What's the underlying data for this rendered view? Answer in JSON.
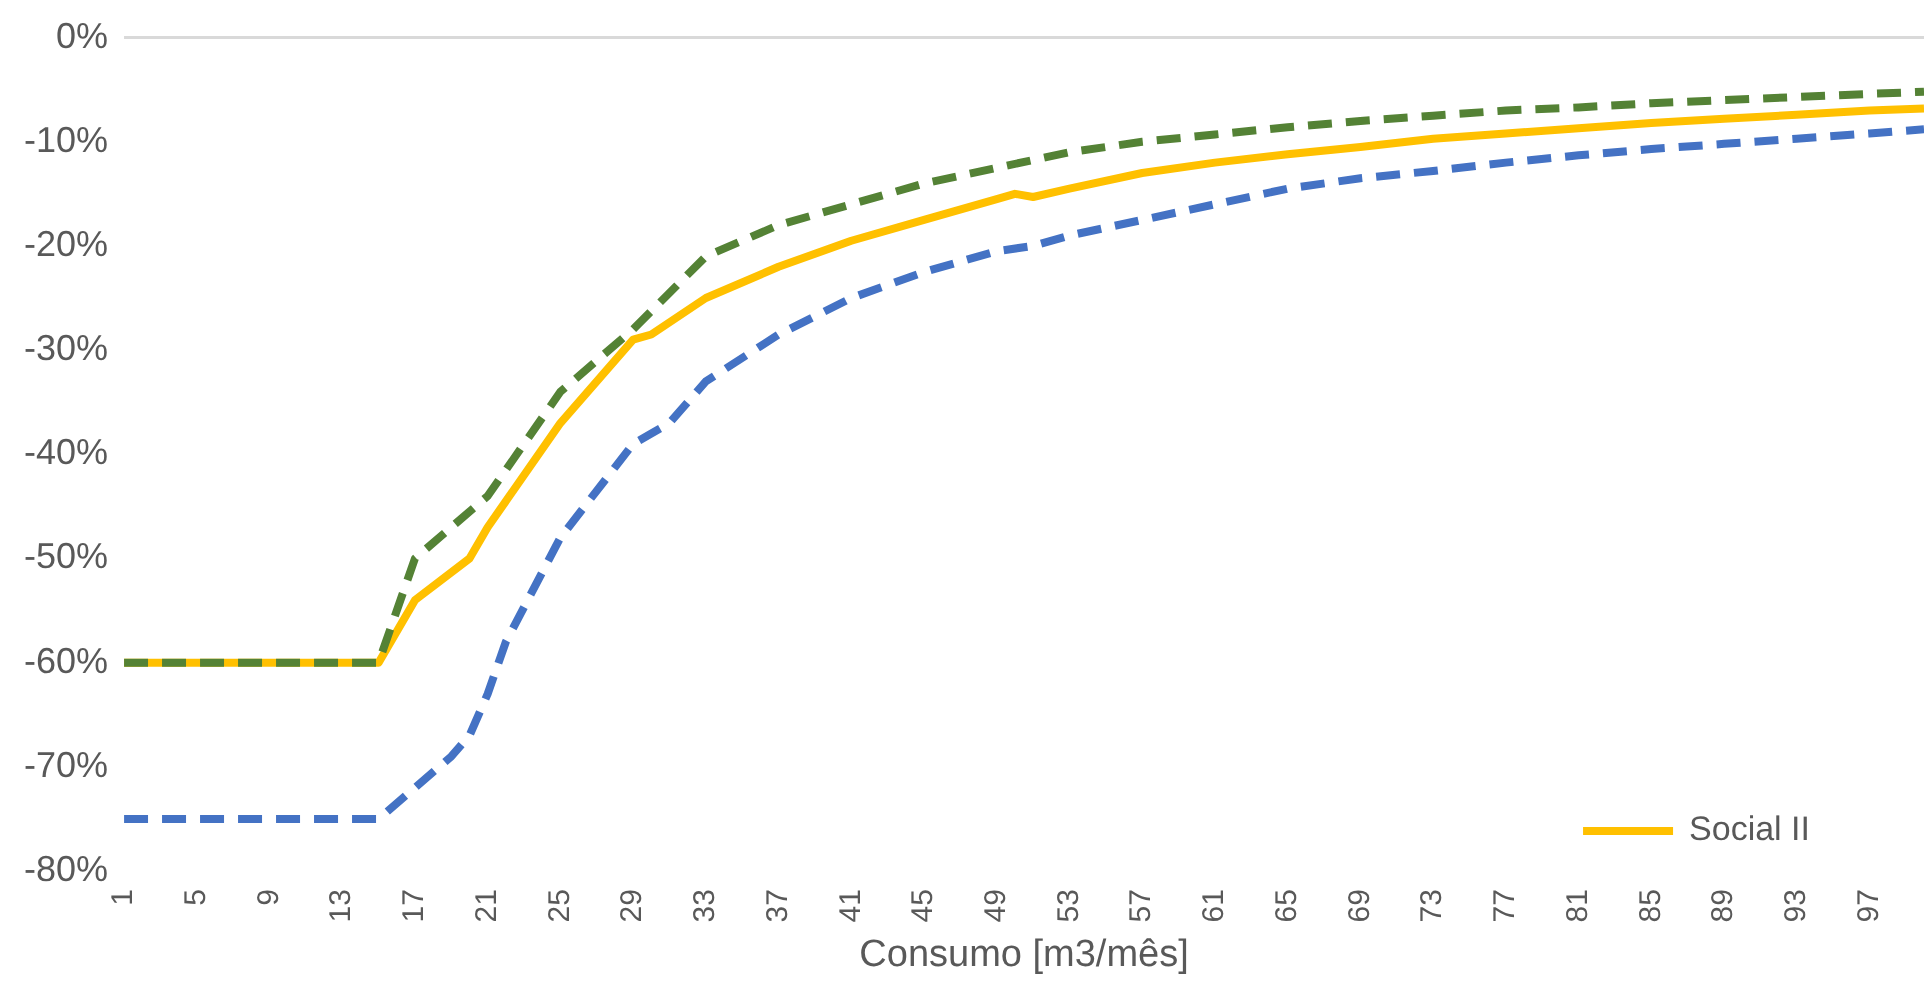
{
  "chart_data": {
    "type": "line",
    "xlabel": "Consumo [m3/mês]",
    "xlim": [
      1,
      100
    ],
    "xticks": [
      1,
      5,
      9,
      13,
      17,
      21,
      25,
      29,
      33,
      37,
      41,
      45,
      49,
      53,
      57,
      61,
      65,
      69,
      73,
      77,
      81,
      85,
      89,
      93,
      97
    ],
    "ylim": [
      -80,
      0
    ],
    "yticks": [
      {
        "value": 0,
        "label": "0%"
      },
      {
        "value": -10,
        "label": "-10%"
      },
      {
        "value": -20,
        "label": "-20%"
      },
      {
        "value": -30,
        "label": "-30%"
      },
      {
        "value": -40,
        "label": "-40%"
      },
      {
        "value": -50,
        "label": "-50%"
      },
      {
        "value": -60,
        "label": "-60%"
      },
      {
        "value": -70,
        "label": "-70%"
      },
      {
        "value": -80,
        "label": "-80%"
      }
    ],
    "grid": false,
    "legend": "bottom right",
    "marker": "none",
    "ref_lines": [
      {
        "axis": "y",
        "value": 0,
        "color": "#d9d9d9"
      }
    ],
    "series": [
      {
        "color": "#548235",
        "line_style": "dashed",
        "x": [
          1,
          15,
          17,
          21,
          25,
          29,
          33,
          37,
          41,
          45,
          49,
          53,
          57,
          61,
          65,
          69,
          73,
          77,
          81,
          85,
          89,
          93,
          97,
          100
        ],
        "values": [
          -60,
          -60,
          -50,
          -44,
          -34,
          -28,
          -21,
          -18,
          -16,
          -14,
          -12.5,
          -11,
          -10,
          -9.3,
          -8.6,
          -8,
          -7.5,
          -7,
          -6.7,
          -6.3,
          -6,
          -5.7,
          -5.4,
          -5.2
        ]
      },
      {
        "name": "Social II",
        "color": "#ffc000",
        "line_style": "solid",
        "x": [
          1,
          15,
          17,
          20,
          21,
          25,
          29,
          30,
          33,
          37,
          41,
          45,
          49,
          50,
          51,
          53,
          57,
          61,
          65,
          69,
          73,
          77,
          81,
          85,
          89,
          93,
          97,
          100
        ],
        "values": [
          -60,
          -60,
          -54,
          -50,
          -47,
          -37,
          -29,
          -28.5,
          -25,
          -22,
          -19.5,
          -17.5,
          -15.5,
          -15,
          -15.3,
          -14.5,
          -13,
          -12,
          -11.2,
          -10.5,
          -9.7,
          -9.2,
          -8.7,
          -8.2,
          -7.8,
          -7.4,
          -7,
          -6.8
        ]
      },
      {
        "color": "#4472c4",
        "line_style": "dashed",
        "x": [
          1,
          15,
          17,
          19,
          20,
          21,
          22,
          25,
          29,
          30,
          31,
          33,
          37,
          41,
          45,
          49,
          51,
          53,
          57,
          61,
          65,
          69,
          73,
          77,
          81,
          85,
          89,
          93,
          97,
          100
        ],
        "values": [
          -75,
          -75,
          -72,
          -69,
          -67,
          -63,
          -58,
          -48,
          -39,
          -38,
          -37,
          -33,
          -28.5,
          -25,
          -22.5,
          -20.5,
          -20,
          -19,
          -17.5,
          -16,
          -14.5,
          -13.5,
          -12.8,
          -12,
          -11.3,
          -10.7,
          -10.2,
          -9.7,
          -9.2,
          -8.8
        ]
      }
    ]
  }
}
